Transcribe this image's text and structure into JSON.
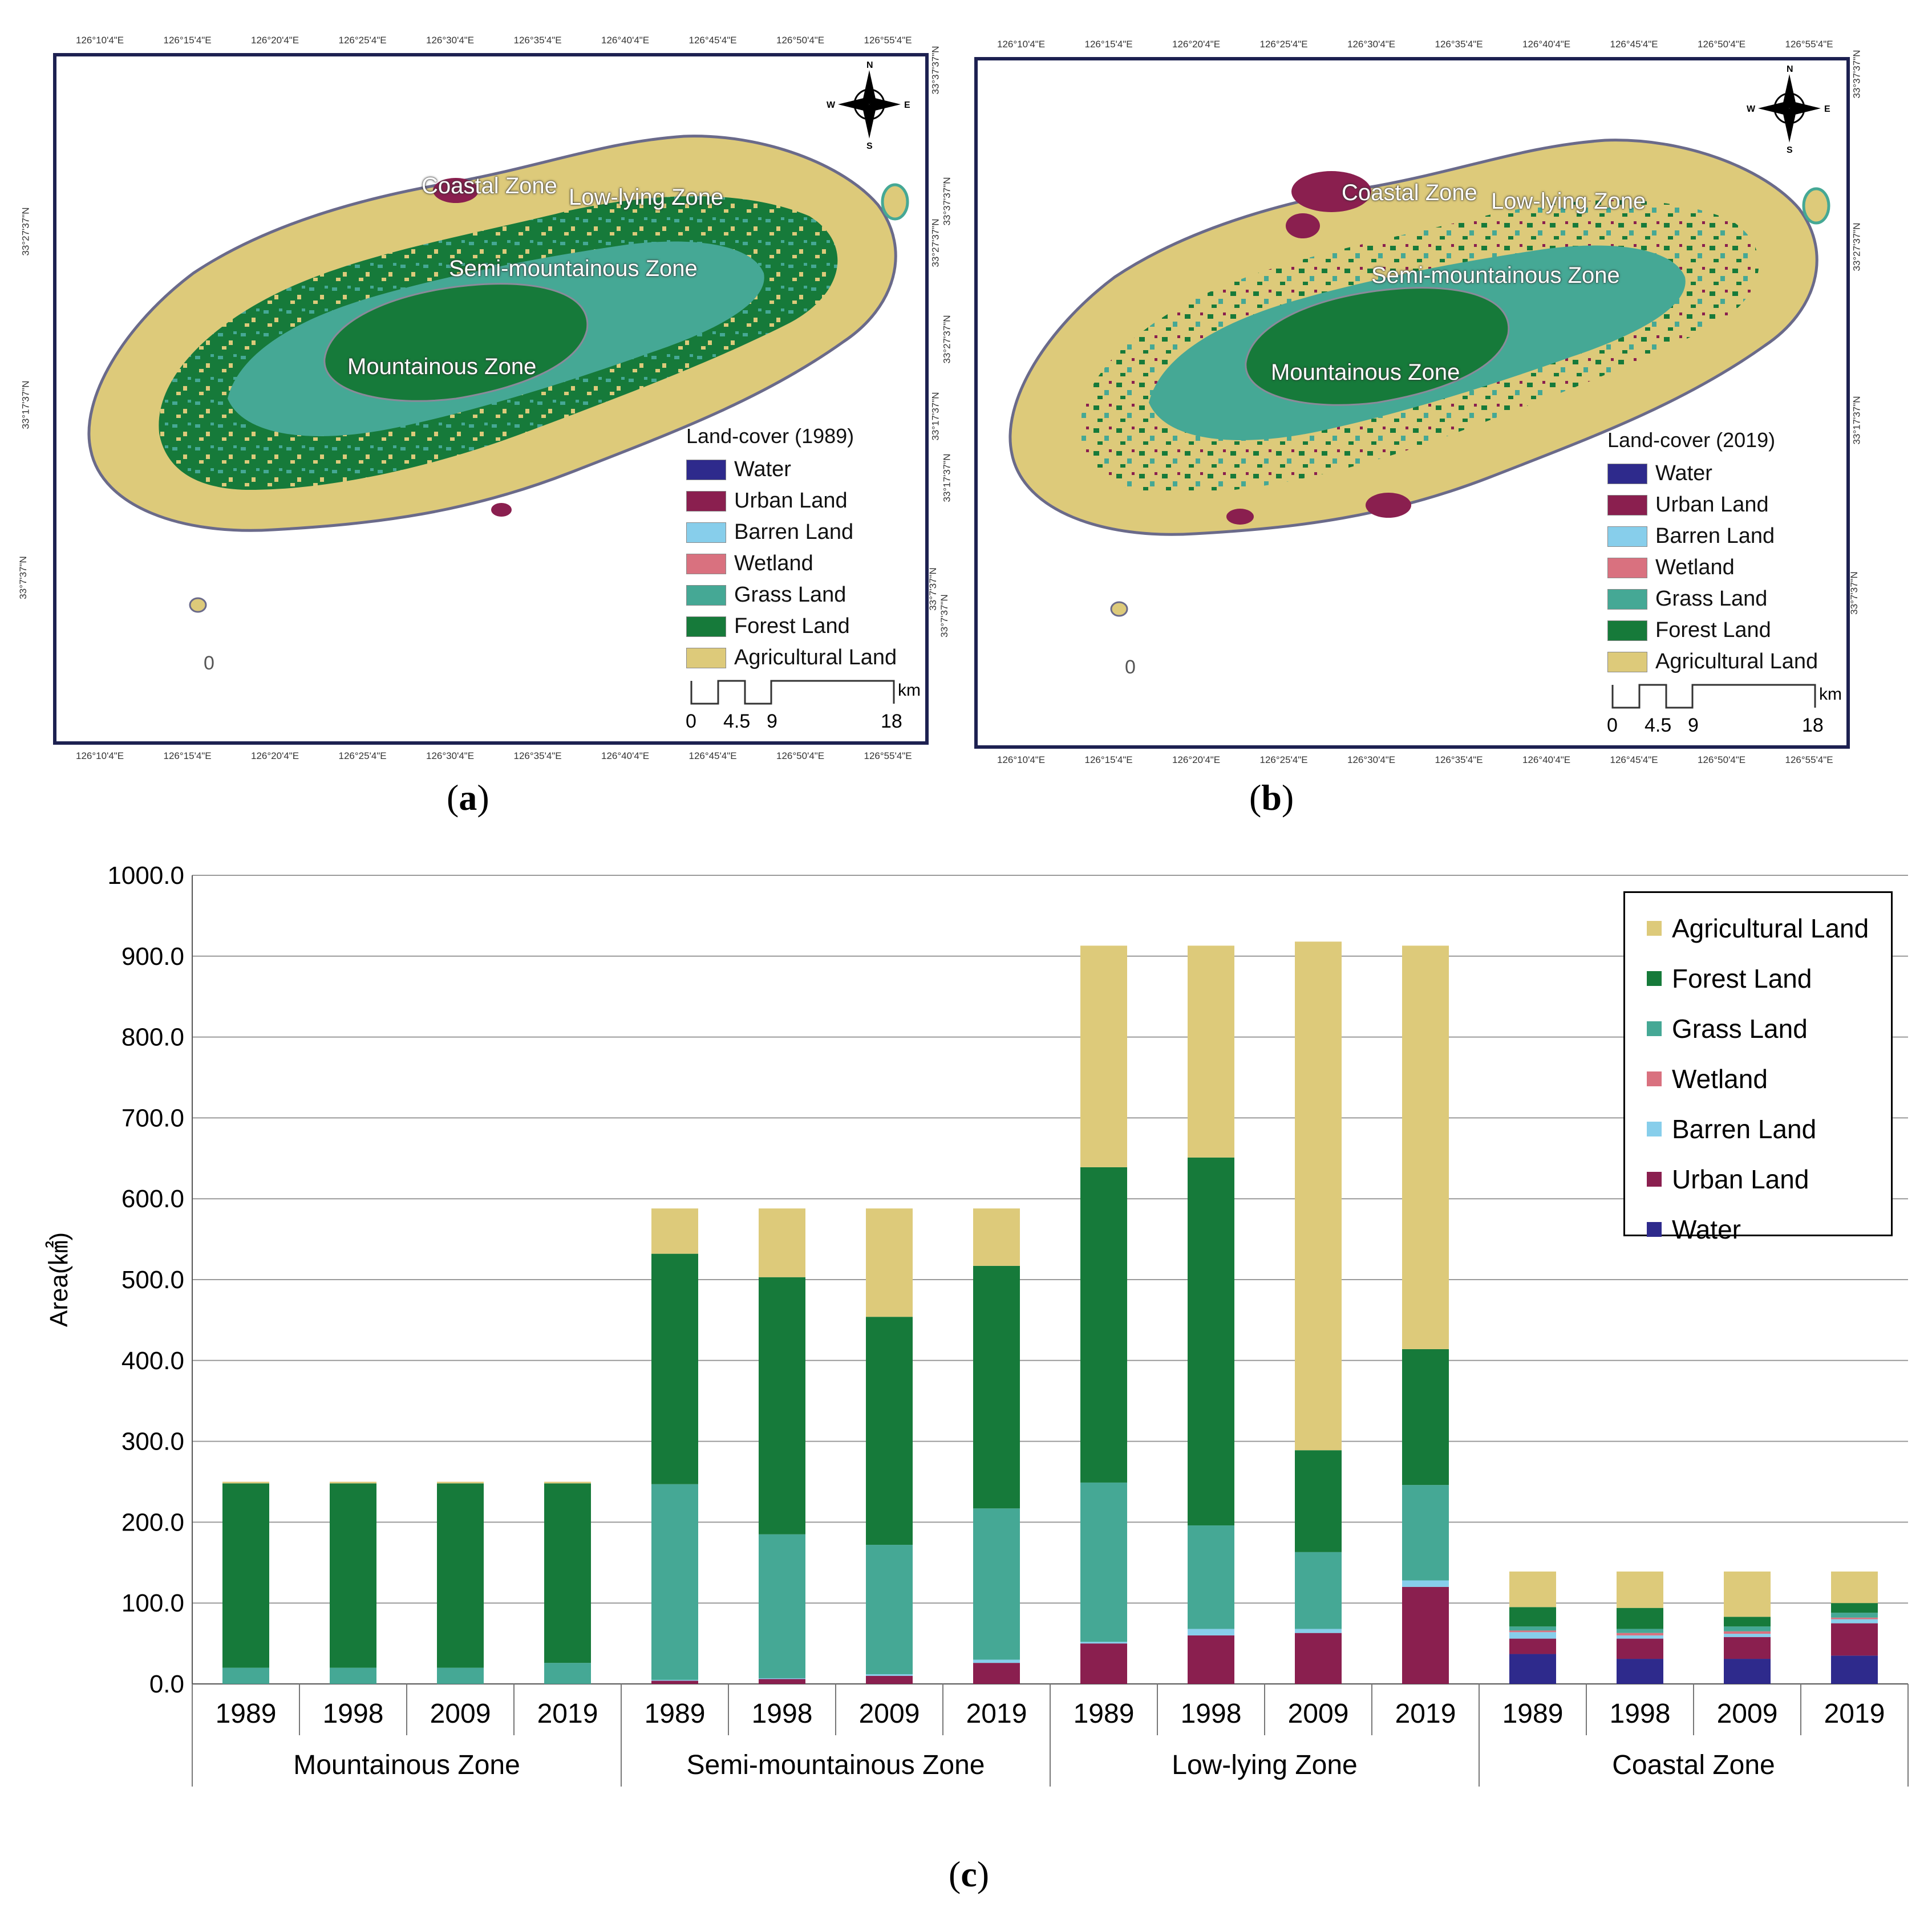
{
  "panel_a": {
    "caption": "a",
    "legend_title": "Land-cover (1989)",
    "top_coords": [
      "126°10'4\"E",
      "126°15'4\"E",
      "126°20'4\"E",
      "126°25'4\"E",
      "126°30'4\"E",
      "126°35'4\"E",
      "126°40'4\"E",
      "126°45'4\"E",
      "126°50'4\"E",
      "126°55'4\"E"
    ],
    "bottom_coords": [
      "126°10'4\"E",
      "126°15'4\"E",
      "126°20'4\"E",
      "126°25'4\"E",
      "126°30'4\"E",
      "126°35'4\"E",
      "126°40'4\"E",
      "126°45'4\"E",
      "126°50'4\"E",
      "126°55'4\"E"
    ],
    "left_coords": [
      "33°27'37\"N",
      "33°17'37\"N",
      "33°7'37\"N"
    ],
    "right_coords": [
      "33°37'37\"N",
      "33°27'37\"N",
      "33°17'37\"N",
      "33°7'37\"N"
    ]
  },
  "panel_b": {
    "caption": "b",
    "legend_title": "Land-cover (2019)",
    "top_coords": [
      "126°10'4\"E",
      "126°15'4\"E",
      "126°20'4\"E",
      "126°25'4\"E",
      "126°30'4\"E",
      "126°35'4\"E",
      "126°40'4\"E",
      "126°45'4\"E",
      "126°50'4\"E",
      "126°55'4\"E"
    ],
    "bottom_coords": [
      "126°10'4\"E",
      "126°15'4\"E",
      "126°20'4\"E",
      "126°25'4\"E",
      "126°30'4\"E",
      "126°35'4\"E",
      "126°40'4\"E",
      "126°45'4\"E",
      "126°50'4\"E",
      "126°55'4\"E"
    ],
    "left_coords": [
      "33°37'37\"N",
      "33°27'37\"N",
      "33°17'37\"N",
      "33°7'37\"N"
    ],
    "right_coords": [
      "33°37'37\"N",
      "33°27'37\"N",
      "33°17'37\"N",
      "33°7'37\"N"
    ]
  },
  "map_common": {
    "zones": {
      "coastal": "Coastal Zone",
      "low_lying": "Low-lying Zone",
      "semi": "Semi-mountainous Zone",
      "mountainous": "Mountainous Zone"
    },
    "legend_items": [
      {
        "label": "Water",
        "color": "#2e2a8c"
      },
      {
        "label": "Urban Land",
        "color": "#8a1f4f"
      },
      {
        "label": "Barren Land",
        "color": "#87ceeb"
      },
      {
        "label": "Wetland",
        "color": "#d9717f"
      },
      {
        "label": "Grass Land",
        "color": "#45a895"
      },
      {
        "label": "Forest Land",
        "color": "#167a3a"
      },
      {
        "label": "Agricultural Land",
        "color": "#ddca7a"
      }
    ],
    "compass": {
      "n": "N",
      "s": "S",
      "e": "E",
      "w": "W"
    },
    "scale": {
      "ticks": [
        "0",
        "4.5",
        "9",
        "18"
      ],
      "unit": "km"
    },
    "islet_label": "0"
  },
  "chart_caption": "c",
  "chart_data": {
    "type": "bar",
    "stacked": true,
    "ylabel": "Area(㎢)",
    "ylim": [
      0,
      1000
    ],
    "yticks": [
      "0.0",
      "100.0",
      "200.0",
      "300.0",
      "400.0",
      "500.0",
      "600.0",
      "700.0",
      "800.0",
      "900.0",
      "1000.0"
    ],
    "grid": true,
    "legend_position": "top-right",
    "groups": [
      {
        "name": "Mountainous Zone",
        "years": [
          "1989",
          "1998",
          "2009",
          "2019"
        ]
      },
      {
        "name": "Semi-mountainous Zone",
        "years": [
          "1989",
          "1998",
          "2009",
          "2019"
        ]
      },
      {
        "name": "Low-lying Zone",
        "years": [
          "1989",
          "1998",
          "2009",
          "2019"
        ]
      },
      {
        "name": "Coastal Zone",
        "years": [
          "1989",
          "1998",
          "2009",
          "2019"
        ]
      }
    ],
    "series": [
      {
        "name": "Water",
        "color": "#2e2a8c",
        "values": [
          0,
          0,
          0,
          0,
          0,
          0,
          0,
          0,
          0,
          0,
          0,
          0,
          37,
          31,
          31,
          35
        ]
      },
      {
        "name": "Urban Land",
        "color": "#8a1f4f",
        "values": [
          0,
          0,
          0,
          0,
          4,
          6,
          10,
          26,
          50,
          60,
          63,
          120,
          19,
          25,
          27,
          40
        ]
      },
      {
        "name": "Barren Land",
        "color": "#87ceeb",
        "values": [
          0,
          0,
          0,
          0,
          1,
          1,
          2,
          4,
          2,
          8,
          5,
          8,
          8,
          4,
          4,
          5
        ]
      },
      {
        "name": "Wetland",
        "color": "#d9717f",
        "values": [
          0,
          0,
          0,
          0,
          0,
          0,
          0,
          0,
          0,
          0,
          0,
          0,
          2,
          3,
          3,
          2
        ]
      },
      {
        "name": "Grass Land",
        "color": "#45a895",
        "values": [
          20,
          20,
          20,
          26,
          242,
          178,
          160,
          187,
          197,
          128,
          95,
          118,
          5,
          5,
          6,
          6
        ]
      },
      {
        "name": "Forest Land",
        "color": "#167a3a",
        "values": [
          228,
          228,
          228,
          222,
          285,
          318,
          282,
          300,
          390,
          455,
          126,
          168,
          24,
          26,
          12,
          12
        ]
      },
      {
        "name": "Agricultural Land",
        "color": "#ddca7a",
        "values": [
          2,
          2,
          2,
          2,
          56,
          85,
          134,
          71,
          274,
          262,
          629,
          499,
          44,
          45,
          56,
          39
        ]
      }
    ],
    "legend_order": [
      "Agricultural Land",
      "Forest Land",
      "Grass Land",
      "Wetland",
      "Barren Land",
      "Urban Land",
      "Water"
    ]
  }
}
